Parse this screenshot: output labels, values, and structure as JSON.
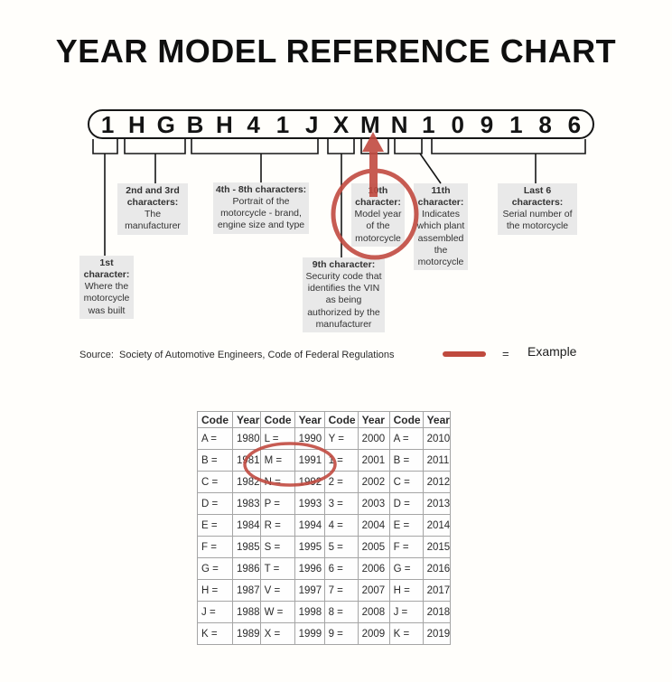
{
  "title": "YEAR MODEL REFERENCE CHART",
  "vin": {
    "characters": [
      "1",
      "H",
      "G",
      "B",
      "H",
      "4",
      "1",
      "J",
      "X",
      "M",
      "N",
      "1",
      "0",
      "9",
      "1",
      "8",
      "6"
    ]
  },
  "callouts": {
    "c1": {
      "heading": "1st character:",
      "body": "Where the motorcycle was built"
    },
    "c2": {
      "heading": "2nd and 3rd characters:",
      "body": "The manufacturer"
    },
    "c3": {
      "heading": "4th - 8th characters:",
      "body": "Portrait of the motorcycle - brand, engine size and type"
    },
    "c9": {
      "heading": "9th character:",
      "body": "Security code that identifies the VIN as being authorized by the manufacturer"
    },
    "c10": {
      "heading": "10th character:",
      "body": "Model year of the motorcycle"
    },
    "c11": {
      "heading": "11th character:",
      "body": "Indicates which plant assembled the motorcycle"
    },
    "clast": {
      "heading": "Last 6 characters:",
      "body": "Serial number of the motorcycle"
    }
  },
  "legend": {
    "source": "Source:  Society of Automotive Engineers, Code of Federal Regulations",
    "equals": "=",
    "example_label": "Example"
  },
  "table": {
    "headers": [
      "Code",
      "Year",
      "Code",
      "Year",
      "Code",
      "Year",
      "Code",
      "Year"
    ],
    "rows": [
      [
        "A =",
        "1980",
        "L =",
        "1990",
        "Y =",
        "2000",
        "A =",
        "2010"
      ],
      [
        "B =",
        "1981",
        "M =",
        "1991",
        "1 =",
        "2001",
        "B =",
        "2011"
      ],
      [
        "C =",
        "1982",
        "N =",
        "1992",
        "2 =",
        "2002",
        "C =",
        "2012"
      ],
      [
        "D =",
        "1983",
        "P =",
        "1993",
        "3 =",
        "2003",
        "D =",
        "2013"
      ],
      [
        "E =",
        "1984",
        "R =",
        "1994",
        "4 =",
        "2004",
        "E =",
        "2014"
      ],
      [
        "F =",
        "1985",
        "S =",
        "1995",
        "5 =",
        "2005",
        "F =",
        "2015"
      ],
      [
        "G =",
        "1986",
        "T =",
        "1996",
        "6 =",
        "2006",
        "G =",
        "2016"
      ],
      [
        "H =",
        "1987",
        "V =",
        "1997",
        "7 =",
        "2007",
        "H =",
        "2017"
      ],
      [
        "J =",
        "1988",
        "W =",
        "1998",
        "8 =",
        "2008",
        "J =",
        "2018"
      ],
      [
        "K =",
        "1989",
        "X =",
        "1999",
        "9 =",
        "2009",
        "K =",
        "2019"
      ]
    ]
  },
  "colors": {
    "accent_red": "#c14a40",
    "callout_bg": "#e9e9e9"
  }
}
